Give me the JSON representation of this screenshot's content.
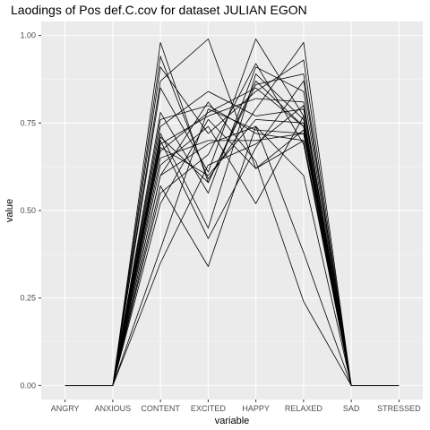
{
  "chart_data": {
    "type": "line",
    "title": "Laodings of Pos def.C.cov for dataset JULIAN EGON",
    "xlabel": "variable",
    "ylabel": "value",
    "categories": [
      "ANGRY",
      "ANXIOUS",
      "CONTENT",
      "EXCITED",
      "HAPPY",
      "RELAXED",
      "SAD",
      "STRESSED"
    ],
    "ylim": [
      -0.04,
      1.04
    ],
    "yticks": [
      0.0,
      0.25,
      0.5,
      0.75,
      1.0
    ],
    "ytick_labels": [
      "0.00",
      "0.25",
      "0.50",
      "0.75",
      "1.00"
    ],
    "grid": true,
    "legend": "none",
    "colors": {
      "panel": "#ebebeb",
      "grid_major": "#ffffff",
      "grid_minor": "#f5f5f5",
      "line": "#000000",
      "tick": "#333333"
    },
    "series": [
      {
        "values": [
          0,
          0,
          0.98,
          0.58,
          0.87,
          0.74,
          0,
          0
        ]
      },
      {
        "values": [
          0,
          0,
          0.94,
          0.59,
          0.79,
          0.98,
          0,
          0
        ]
      },
      {
        "values": [
          0,
          0,
          0.91,
          0.72,
          0.84,
          0.93,
          0,
          0
        ]
      },
      {
        "values": [
          0,
          0,
          0.87,
          0.99,
          0.62,
          0.73,
          0,
          0
        ]
      },
      {
        "values": [
          0,
          0,
          0.85,
          0.61,
          0.99,
          0.77,
          0,
          0
        ]
      },
      {
        "values": [
          0,
          0,
          0.78,
          0.55,
          0.91,
          0.84,
          0,
          0
        ]
      },
      {
        "values": [
          0,
          0,
          0.76,
          0.8,
          0.72,
          0.7,
          0,
          0
        ]
      },
      {
        "values": [
          0,
          0,
          0.74,
          0.84,
          0.77,
          0.79,
          0,
          0
        ]
      },
      {
        "values": [
          0,
          0,
          0.72,
          0.45,
          0.89,
          0.76,
          0,
          0
        ]
      },
      {
        "values": [
          0,
          0,
          0.71,
          0.58,
          0.86,
          0.89,
          0,
          0
        ]
      },
      {
        "values": [
          0,
          0,
          0.7,
          0.42,
          0.68,
          0.87,
          0,
          0
        ]
      },
      {
        "values": [
          0,
          0,
          0.69,
          0.77,
          0.82,
          0.81,
          0,
          0
        ]
      },
      {
        "values": [
          0,
          0,
          0.68,
          0.6,
          0.76,
          0.75,
          0,
          0
        ]
      },
      {
        "values": [
          0,
          0,
          0.67,
          0.78,
          0.85,
          0.74,
          0,
          0
        ]
      },
      {
        "values": [
          0,
          0,
          0.65,
          0.7,
          0.7,
          0.72,
          0,
          0
        ]
      },
      {
        "values": [
          0,
          0,
          0.63,
          0.74,
          0.52,
          0.77,
          0,
          0
        ]
      },
      {
        "values": [
          0,
          0,
          0.6,
          0.81,
          0.64,
          0.24,
          0,
          0
        ]
      },
      {
        "values": [
          0,
          0,
          0.57,
          0.34,
          0.74,
          0.38,
          0,
          0
        ]
      },
      {
        "values": [
          0,
          0,
          0.55,
          0.66,
          0.92,
          0.69,
          0,
          0
        ]
      },
      {
        "values": [
          0,
          0,
          0.52,
          0.76,
          0.62,
          0.7,
          0,
          0
        ]
      },
      {
        "values": [
          0,
          0,
          0.39,
          0.79,
          0.73,
          0.72,
          0,
          0
        ]
      },
      {
        "values": [
          0,
          0,
          0.35,
          0.63,
          0.69,
          0.8,
          0,
          0
        ]
      },
      {
        "values": [
          0,
          0,
          0.6,
          0.69,
          0.74,
          0.6,
          0,
          0
        ]
      }
    ]
  }
}
